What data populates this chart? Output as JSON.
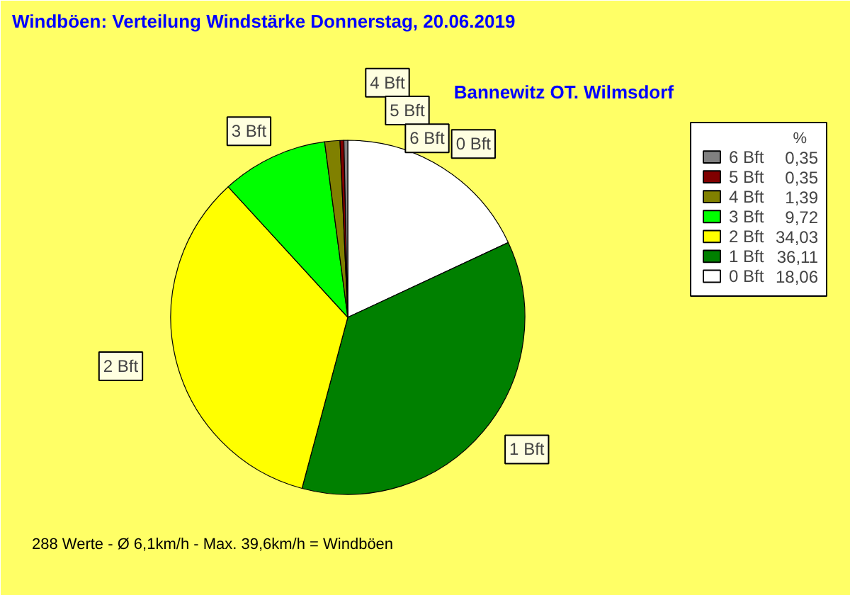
{
  "chart_data": {
    "type": "pie",
    "title": "Windböen: Verteilung Windstärke  Donnerstag, 20.06.2019",
    "subtitle": "Bannewitz OT. Wilmsdorf",
    "categories": [
      "0 Bft",
      "1 Bft",
      "2 Bft",
      "3 Bft",
      "4 Bft",
      "5 Bft",
      "6 Bft"
    ],
    "values": [
      18.06,
      36.11,
      34.03,
      9.72,
      1.39,
      0.35,
      0.35
    ],
    "value_labels": [
      "18,06",
      "36,11",
      "34,03",
      "9,72",
      "1,39",
      "0,35",
      "0,35"
    ],
    "colors": [
      "#ffffff",
      "#008000",
      "#ffff00",
      "#00ff00",
      "#808000",
      "#800000",
      "#808080"
    ],
    "legend": "top right",
    "legend_title": "%",
    "annotations": [
      "288 Werte   -   Ø 6,1km/h  -  Max. 39,6km/h = Windböen"
    ]
  }
}
